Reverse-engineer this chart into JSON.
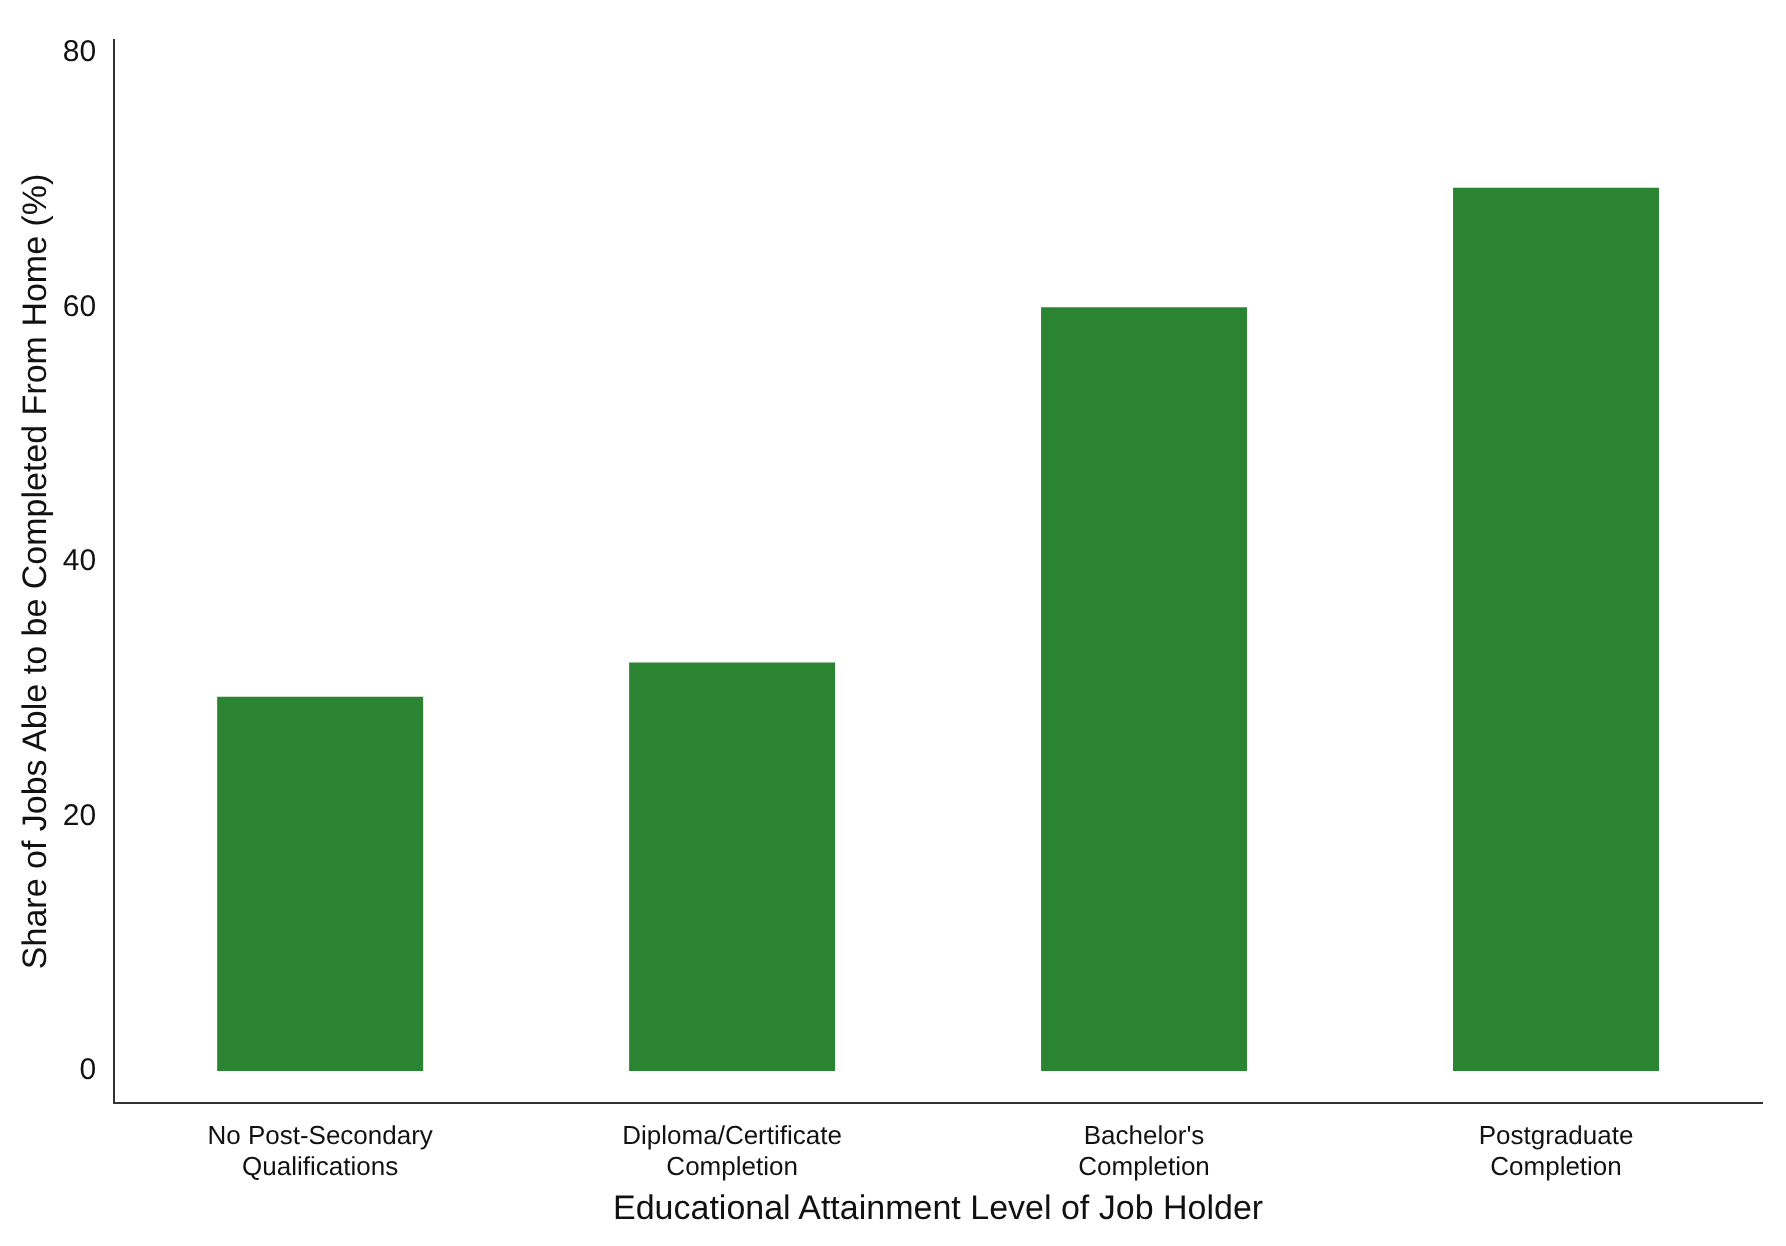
{
  "chart_data": {
    "type": "bar",
    "xlabel": "Educational Attainment Level of Job Holder",
    "ylabel": "Share of Jobs Able to be Completed From Home (%)",
    "categories": [
      "No Post-Secondary Qualifications",
      "Diploma/Certificate Completion",
      "Bachelor's Completion",
      "Postgraduate Completion"
    ],
    "values": [
      29.4,
      32.1,
      60.0,
      69.4
    ],
    "color": "#2b8431",
    "ylim": [
      -2.5,
      81
    ],
    "yticks": [
      0,
      20,
      40,
      60,
      80
    ],
    "grid": false,
    "legend": false
  }
}
